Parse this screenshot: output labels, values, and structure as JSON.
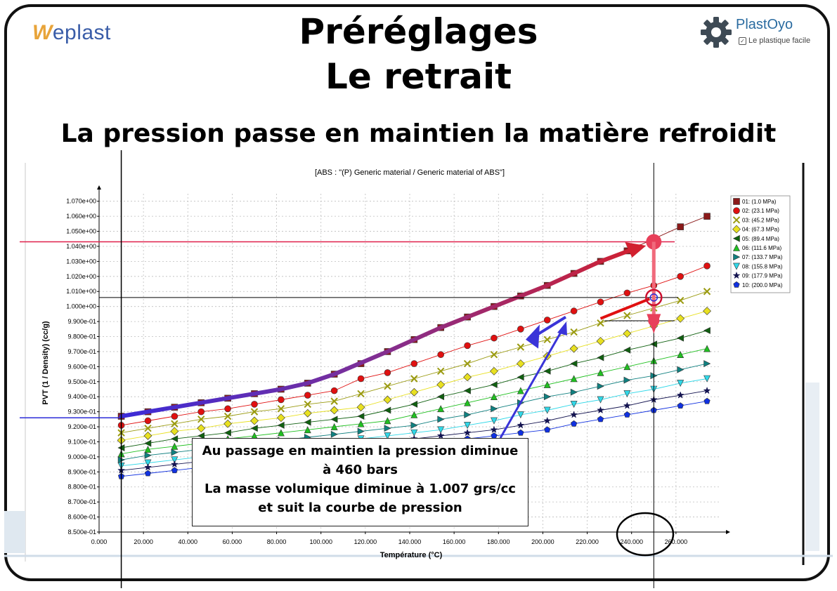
{
  "header": {
    "logo_left": {
      "w": "W",
      "rest": "eplast"
    },
    "logo_right": {
      "name": "PlastOyo",
      "tagline": "Le plastique facile",
      "icon": "gear-icon"
    },
    "title_line1": "Préréglages",
    "title_line2": "Le retrait",
    "subtitle": "La pression passe en maintien la matière refroidit"
  },
  "callout": {
    "line1": "Au passage en maintien la pression diminue",
    "line2": "à 460 bars",
    "line3": "La masse volumique diminue à 1.007 grs/cc",
    "line4": "et suit la courbe de pression"
  },
  "chart_data": {
    "type": "line",
    "title": "[ABS : \"(P)  Generic material / Generic material of ABS\"]",
    "xlabel": "Température (°C)",
    "ylabel": "PVT (1 / Density) (cc/g)",
    "xlim": [
      0,
      280
    ],
    "ylim": [
      0.85,
      1.075
    ],
    "xticks": [
      0,
      20,
      40,
      60,
      80,
      100,
      120,
      140,
      160,
      180,
      200,
      220,
      240,
      260
    ],
    "xtick_labels": [
      "0.000",
      "20.000",
      "40.000",
      "60.000",
      "80.000",
      "100.000",
      "120.000",
      "140.000",
      "160.000",
      "180.000",
      "200.000",
      "220.000",
      "240.000",
      "260.000"
    ],
    "yticks": [
      0.85,
      0.86,
      0.87,
      0.88,
      0.89,
      0.9,
      0.91,
      0.92,
      0.93,
      0.94,
      0.95,
      0.96,
      0.97,
      0.98,
      0.99,
      1.0,
      1.01,
      1.02,
      1.03,
      1.04,
      1.05,
      1.06,
      1.07
    ],
    "ytick_labels": [
      "8.500e-01",
      "8.600e-01",
      "8.700e-01",
      "8.800e-01",
      "8.900e-01",
      "9.000e-01",
      "9.100e-01",
      "9.200e-01",
      "9.300e-01",
      "9.400e-01",
      "9.500e-01",
      "9.600e-01",
      "9.700e-01",
      "9.800e-01",
      "9.900e-01",
      "1.000e+00",
      "1.010e+00",
      "1.020e+00",
      "1.030e+00",
      "1.040e+00",
      "1.050e+00",
      "1.060e+00",
      "1.070e+00"
    ],
    "grid": true,
    "legend_position": "right",
    "x": [
      10,
      22,
      34,
      46,
      58,
      70,
      82,
      94,
      106,
      118,
      130,
      142,
      154,
      166,
      178,
      190,
      202,
      214,
      226,
      238,
      250,
      262,
      274
    ],
    "series": [
      {
        "name": "01: (1.0 MPa)",
        "color": "#8b1a1a",
        "marker": "square",
        "values": [
          0.927,
          0.93,
          0.933,
          0.936,
          0.939,
          0.942,
          0.945,
          0.949,
          0.955,
          0.962,
          0.97,
          0.978,
          0.986,
          0.993,
          1.0,
          1.007,
          1.014,
          1.022,
          1.03,
          1.037,
          1.045,
          1.053,
          1.06
        ]
      },
      {
        "name": "02: (23.1 MPa)",
        "color": "#e01010",
        "marker": "circle",
        "values": [
          0.921,
          0.924,
          0.927,
          0.93,
          0.932,
          0.935,
          0.938,
          0.941,
          0.944,
          0.952,
          0.956,
          0.962,
          0.968,
          0.974,
          0.979,
          0.985,
          0.991,
          0.997,
          1.003,
          1.009,
          1.014,
          1.02,
          1.027
        ]
      },
      {
        "name": "03: (45.2 MPa)",
        "color": "#9a9a10",
        "marker": "x",
        "values": [
          0.916,
          0.919,
          0.922,
          0.925,
          0.927,
          0.93,
          0.932,
          0.935,
          0.937,
          0.942,
          0.947,
          0.952,
          0.957,
          0.962,
          0.968,
          0.973,
          0.978,
          0.983,
          0.989,
          0.994,
          0.999,
          1.004,
          1.01
        ]
      },
      {
        "name": "04: (67.3 MPa)",
        "color": "#e8e020",
        "marker": "diamond",
        "values": [
          0.911,
          0.914,
          0.917,
          0.919,
          0.922,
          0.924,
          0.926,
          0.929,
          0.931,
          0.933,
          0.938,
          0.943,
          0.948,
          0.953,
          0.957,
          0.962,
          0.967,
          0.972,
          0.977,
          0.982,
          0.987,
          0.992,
          0.997
        ]
      },
      {
        "name": "05: (89.4 MPa)",
        "color": "#106010",
        "marker": "tri-left",
        "values": [
          0.906,
          0.909,
          0.912,
          0.914,
          0.916,
          0.919,
          0.921,
          0.923,
          0.925,
          0.927,
          0.931,
          0.935,
          0.94,
          0.944,
          0.948,
          0.953,
          0.957,
          0.962,
          0.966,
          0.971,
          0.975,
          0.979,
          0.984
        ]
      },
      {
        "name": "06: (111.6 MPa)",
        "color": "#20c020",
        "marker": "tri-up",
        "values": [
          0.902,
          0.905,
          0.907,
          0.909,
          0.912,
          0.914,
          0.916,
          0.918,
          0.92,
          0.922,
          0.924,
          0.928,
          0.932,
          0.936,
          0.94,
          0.944,
          0.948,
          0.952,
          0.956,
          0.96,
          0.964,
          0.968,
          0.972
        ]
      },
      {
        "name": "07: (133.7 MPa)",
        "color": "#108080",
        "marker": "tri-right",
        "values": [
          0.898,
          0.901,
          0.903,
          0.905,
          0.907,
          0.909,
          0.911,
          0.913,
          0.915,
          0.917,
          0.919,
          0.921,
          0.925,
          0.928,
          0.932,
          0.936,
          0.94,
          0.943,
          0.947,
          0.951,
          0.954,
          0.958,
          0.962
        ]
      },
      {
        "name": "08: (155.8 MPa)",
        "color": "#30d8e8",
        "marker": "tri-down",
        "values": [
          0.894,
          0.896,
          0.898,
          0.9,
          0.902,
          0.904,
          0.906,
          0.908,
          0.91,
          0.912,
          0.914,
          0.916,
          0.918,
          0.921,
          0.924,
          0.928,
          0.931,
          0.935,
          0.938,
          0.942,
          0.945,
          0.949,
          0.952
        ]
      },
      {
        "name": "09: (177.9 MPa)",
        "color": "#141450",
        "marker": "star",
        "values": [
          0.891,
          0.893,
          0.895,
          0.897,
          0.899,
          0.901,
          0.903,
          0.905,
          0.906,
          0.908,
          0.91,
          0.912,
          0.914,
          0.916,
          0.918,
          0.921,
          0.924,
          0.928,
          0.931,
          0.934,
          0.938,
          0.941,
          0.944
        ]
      },
      {
        "name": "10: (200.0 MPa)",
        "color": "#1030e0",
        "marker": "pentagon",
        "values": [
          0.887,
          0.889,
          0.891,
          0.893,
          0.895,
          0.897,
          0.899,
          0.901,
          0.903,
          0.905,
          0.906,
          0.908,
          0.91,
          0.912,
          0.914,
          0.916,
          0.918,
          0.922,
          0.925,
          0.928,
          0.931,
          0.934,
          0.937
        ]
      }
    ],
    "highlight_path": [
      {
        "x": 10,
        "y": 0.927
      },
      {
        "x": 34,
        "y": 0.933
      },
      {
        "x": 58,
        "y": 0.939
      },
      {
        "x": 82,
        "y": 0.945
      },
      {
        "x": 94,
        "y": 0.949
      },
      {
        "x": 106,
        "y": 0.955
      },
      {
        "x": 130,
        "y": 0.97
      },
      {
        "x": 154,
        "y": 0.986
      },
      {
        "x": 178,
        "y": 1.0
      },
      {
        "x": 202,
        "y": 1.014
      },
      {
        "x": 226,
        "y": 1.03
      },
      {
        "x": 244,
        "y": 1.04
      }
    ],
    "annotation_lines": {
      "h_red_y": 1.043,
      "h_black_y": 1.006,
      "h_blue_y": 0.926,
      "v_left_x": 10,
      "v_right_x": 250
    }
  }
}
